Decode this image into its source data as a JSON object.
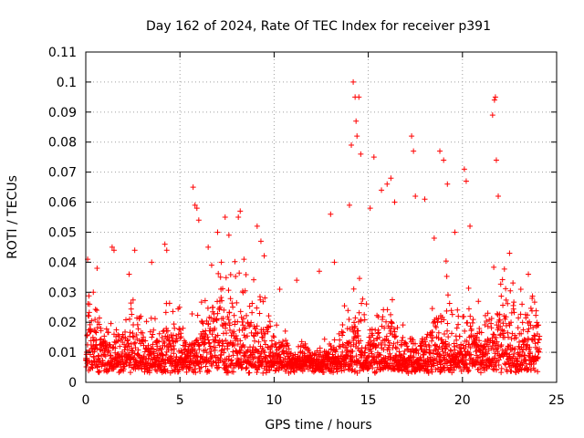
{
  "chart_data": {
    "type": "scatter",
    "title": "Day 162 of 2024, Rate Of TEC Index for receiver p391",
    "xlabel": "GPS time / hours",
    "ylabel": "ROTI / TECUs",
    "xlim": [
      0,
      25
    ],
    "ylim": [
      0,
      0.11
    ],
    "x_ticks": [
      "0",
      "5",
      "10",
      "15",
      "20",
      "25"
    ],
    "y_ticks": [
      "0",
      "0.01",
      "0.02",
      "0.03",
      "0.04",
      "0.05",
      "0.06",
      "0.07",
      "0.08",
      "0.09",
      "0.1",
      "0.11"
    ],
    "grid": true,
    "legend": "none",
    "marker": "+",
    "color": "#ff0000",
    "series": [
      {
        "x": [
          0.1,
          0.2,
          0.4,
          0.6,
          1.4,
          1.5,
          2.3,
          2.6,
          3.5,
          4.2,
          4.3,
          5.7,
          5.8,
          5.9,
          6.0,
          6.5,
          7.0,
          7.2,
          7.4,
          7.6,
          8.1,
          8.2,
          8.4,
          9.1,
          9.3,
          10.3,
          11.2,
          12.4,
          13.0,
          13.2,
          14.0,
          14.1,
          14.2,
          14.3,
          14.35,
          14.4,
          14.5,
          14.6,
          15.1,
          15.3,
          15.7,
          16.0,
          16.2,
          16.4,
          17.3,
          17.4,
          17.5,
          18.0,
          18.5,
          18.8,
          19.0,
          19.2,
          19.6,
          20.1,
          20.2,
          20.4,
          21.6,
          21.7,
          21.75,
          21.8,
          21.9,
          22.5,
          23.1,
          23.5,
          23.7,
          24.0
        ],
        "y": [
          0.041,
          0.026,
          0.03,
          0.038,
          0.045,
          0.044,
          0.036,
          0.044,
          0.04,
          0.046,
          0.044,
          0.065,
          0.059,
          0.058,
          0.054,
          0.045,
          0.05,
          0.04,
          0.055,
          0.049,
          0.055,
          0.057,
          0.041,
          0.052,
          0.047,
          0.031,
          0.034,
          0.037,
          0.056,
          0.04,
          0.059,
          0.079,
          0.1,
          0.095,
          0.087,
          0.082,
          0.095,
          0.076,
          0.058,
          0.075,
          0.064,
          0.066,
          0.068,
          0.06,
          0.082,
          0.077,
          0.062,
          0.061,
          0.048,
          0.077,
          0.074,
          0.066,
          0.05,
          0.071,
          0.067,
          0.052,
          0.089,
          0.094,
          0.095,
          0.074,
          0.062,
          0.043,
          0.031,
          0.036,
          0.028,
          0.019
        ]
      }
    ]
  }
}
